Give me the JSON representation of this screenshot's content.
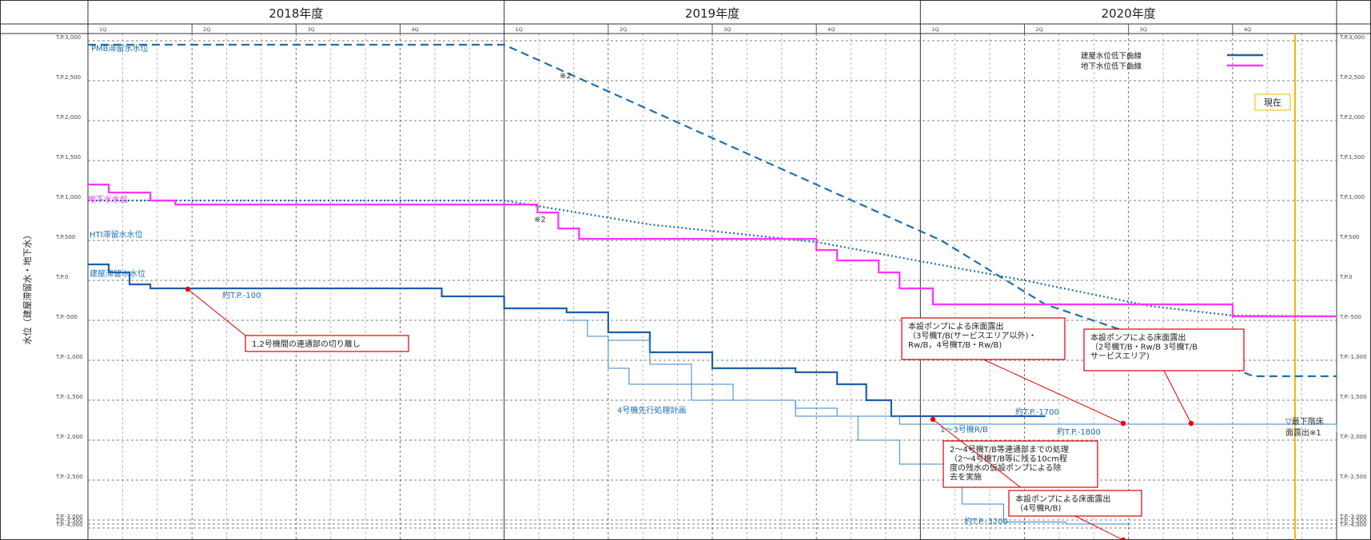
{
  "chart_data": {
    "type": "line",
    "ylabel": "水位（建屋滞留水・地下水）",
    "x_axis": {
      "years": [
        "2018年度",
        "2019年度",
        "2020年度"
      ],
      "quarters": [
        "1Q",
        "2Q",
        "3Q",
        "4Q"
      ],
      "start": 2018.25,
      "end": 2021.25
    },
    "y_axis": {
      "ticks": [
        3000,
        2500,
        2000,
        1500,
        1000,
        500,
        0,
        -500,
        -1000,
        -1500,
        -2000,
        -2500,
        -3000,
        -3500,
        -4000
      ],
      "tick_labels": [
        "T.P.3,000",
        "T.P.2,500",
        "T.P.2,000",
        "T.P.1,500",
        "T.P.1,000",
        "T.P.500",
        "T.P.0",
        "T.P.-500",
        "T.P.-1,000",
        "T.P.-1,500",
        "T.P.-2,000",
        "T.P.-2,500",
        "T.P.-3,000",
        "T.P.-3,500",
        "T.P.-4,000"
      ]
    },
    "legend": {
      "position": "top-right",
      "entries": [
        {
          "label": "建屋水位低下曲線",
          "color": "#1f5fa8"
        },
        {
          "label": "地下水位低下曲線",
          "color": "#ff33ff"
        }
      ]
    },
    "current_marker": {
      "label": "現在",
      "x": 2021.15,
      "color": "#f5b400"
    },
    "series": [
      {
        "name": "PMB滞留水水位",
        "style": "dashed",
        "color": "#1f6fb2",
        "points": [
          [
            2018.25,
            2950
          ],
          [
            2019.25,
            2950
          ],
          [
            2020.3,
            500
          ],
          [
            2020.55,
            -300
          ],
          [
            2020.95,
            -1000
          ],
          [
            2021.05,
            -1200
          ],
          [
            2021.25,
            -1200
          ]
        ]
      },
      {
        "name": "HTI滞留水水位",
        "style": "dotted",
        "color": "#1f6fb2",
        "points": [
          [
            2018.25,
            1000
          ],
          [
            2019.25,
            1000
          ],
          [
            2019.6,
            700
          ],
          [
            2020.0,
            480
          ],
          [
            2020.5,
            0
          ],
          [
            2020.8,
            -320
          ],
          [
            2021.0,
            -440
          ],
          [
            2021.25,
            -450
          ]
        ]
      },
      {
        "name": "地下水水位",
        "style": "step",
        "color": "#ff33ff",
        "points": [
          [
            2018.25,
            1200
          ],
          [
            2018.3,
            1100
          ],
          [
            2018.4,
            1000
          ],
          [
            2018.46,
            950
          ],
          [
            2019.25,
            950
          ],
          [
            2019.33,
            850
          ],
          [
            2019.38,
            650
          ],
          [
            2019.43,
            520
          ],
          [
            2019.95,
            520
          ],
          [
            2020.0,
            380
          ],
          [
            2020.05,
            250
          ],
          [
            2020.15,
            100
          ],
          [
            2020.2,
            -100
          ],
          [
            2020.28,
            -300
          ],
          [
            2020.95,
            -300
          ],
          [
            2021.0,
            -450
          ],
          [
            2021.25,
            -450
          ]
        ]
      },
      {
        "name": "建屋滞留水水位",
        "style": "step",
        "color": "#1f5fa8",
        "points": [
          [
            2018.25,
            200
          ],
          [
            2018.3,
            100
          ],
          [
            2018.35,
            -50
          ],
          [
            2018.4,
            -100
          ],
          [
            2019.0,
            -100
          ],
          [
            2019.1,
            -200
          ],
          [
            2019.25,
            -350
          ],
          [
            2019.4,
            -400
          ],
          [
            2019.5,
            -650
          ],
          [
            2019.6,
            -900
          ],
          [
            2019.75,
            -1100
          ],
          [
            2019.95,
            -1150
          ],
          [
            2020.05,
            -1300
          ],
          [
            2020.12,
            -1500
          ],
          [
            2020.18,
            -1700
          ],
          [
            2020.55,
            -1700
          ]
        ]
      },
      {
        "name": "1～3号機R/B",
        "style": "step-thin",
        "color": "#3a86c8",
        "points": [
          [
            2019.4,
            -500
          ],
          [
            2019.45,
            -700
          ],
          [
            2019.5,
            -1100
          ],
          [
            2019.55,
            -1300
          ],
          [
            2019.7,
            -1500
          ],
          [
            2019.95,
            -1600
          ],
          [
            2020.05,
            -1700
          ],
          [
            2020.2,
            -1800
          ],
          [
            2021.15,
            -1800
          ],
          [
            2021.25,
            -1900
          ]
        ]
      },
      {
        "name": "4号機先行処理計画",
        "style": "step-thin",
        "color": "#3a86c8",
        "points": [
          [
            2019.5,
            -750
          ],
          [
            2019.6,
            -1050
          ],
          [
            2019.7,
            -1300
          ],
          [
            2019.8,
            -1500
          ],
          [
            2019.95,
            -1700
          ],
          [
            2020.1,
            -2000
          ],
          [
            2020.2,
            -2300
          ],
          [
            2020.35,
            -2800
          ],
          [
            2020.45,
            -3250
          ],
          [
            2020.6,
            -3500
          ],
          [
            2020.75,
            -3700
          ]
        ]
      }
    ],
    "annotations": [
      {
        "text": "PMB滞留水水位",
        "color": "#1f6fb2"
      },
      {
        "text": "※2",
        "color": "#333"
      },
      {
        "text": "※2",
        "color": "#333"
      },
      {
        "text": "地下水水位",
        "color": "#ff33ff"
      },
      {
        "text": "HTI滞留水水位",
        "color": "#1f6fb2"
      },
      {
        "text": "建屋滞留水水位",
        "color": "#1f6fb2"
      },
      {
        "text": "約T.P.-100",
        "color": "#1f6fb2"
      },
      {
        "text": "4号機先行処理計画",
        "color": "#1f6fb2"
      },
      {
        "text": "約T.P.-1700",
        "color": "#1f6fb2"
      },
      {
        "text": "1～3号機R/B",
        "color": "#1f6fb2"
      },
      {
        "text": "約T.P.-1800",
        "color": "#1f6fb2"
      },
      {
        "text": "約T.P.-3200",
        "color": "#1f6fb2"
      },
      {
        "text": "▽最下階床",
        "color": "#333"
      },
      {
        "text": "面露出※1",
        "color": "#333"
      }
    ],
    "callouts": [
      {
        "lines": [
          "1,2号機間の連通部の切り離し"
        ]
      },
      {
        "lines": [
          "本設ポンプによる床面露出",
          "（3号機T/B(サービスエリア以外)・",
          "Rw/B，4号機T/B・Rw/B)"
        ]
      },
      {
        "lines": [
          "本設ポンプによる床面露出",
          "（2号機T/B・Rw/B 3号機T/B",
          "サービスエリア)"
        ]
      },
      {
        "lines": [
          "2～4号機T/B等連通部までの処理",
          "（2～4号機T/B等に残る10cm程",
          "度の残水の仮設ポンプによる除",
          "去を実施"
        ]
      },
      {
        "lines": [
          "本設ポンプによる床面露出",
          "（4号機R/B)"
        ]
      }
    ]
  }
}
